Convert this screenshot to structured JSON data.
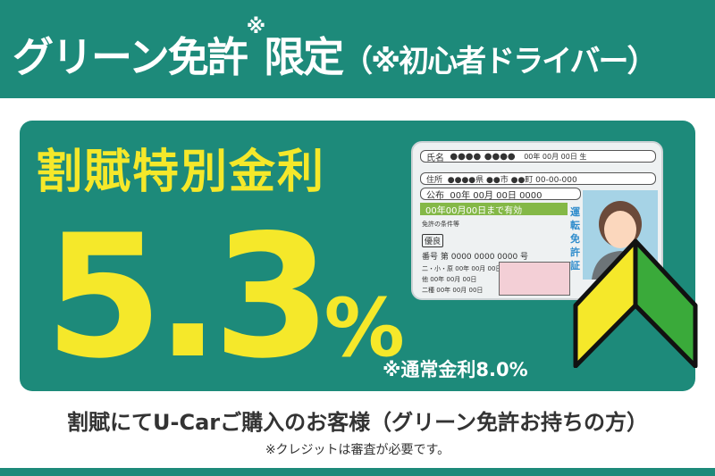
{
  "header": {
    "title_main": "グリーン免許",
    "title_mark": "※",
    "title_rest": "限定",
    "title_note": "（※初心者ドライバー）"
  },
  "panel": {
    "heading": "割賦特別金利",
    "rate_number": "5.3",
    "rate_unit": "%",
    "normal_rate": "※通常金利8.0%"
  },
  "license_card": {
    "name_label": "氏名",
    "name_value": "●●●● ●●●●",
    "birth": "00年 00月 00日 生",
    "address_label": "住所",
    "address_value": "●●●●県 ●●市 ●●町 00-00-000",
    "issue_label": "公布",
    "issue_value": "00年 00月 00日 0000",
    "valid": "00年00月00日まで有効",
    "conditions_label": "免許の条件等",
    "grade": "優良",
    "number_label": "番号",
    "number_value": "第 0000 0000 0000 号",
    "license_title": "運転免許証",
    "cat1": "二・小・原",
    "cat2": "他",
    "cat3": "二種",
    "date": "00年 00月 00日"
  },
  "colors": {
    "brand_green": "#1d8a7a",
    "accent_yellow": "#f5e82a",
    "card_green": "#84b847"
  },
  "footer": {
    "line1": "割賦にてU-Carご購入のお客様（グリーン免許お持ちの方）",
    "line2": "※クレジットは審査が必要です。"
  }
}
